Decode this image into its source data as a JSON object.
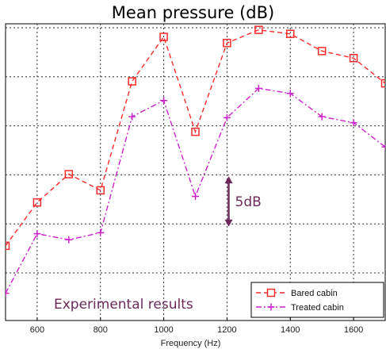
{
  "chart_data": {
    "type": "line",
    "title": "Mean pressure (dB)",
    "xlabel": "Frequency (Hz)",
    "ylabel": "",
    "xlim": [
      500,
      1700
    ],
    "x_ticks": [
      600,
      800,
      1000,
      1200,
      1400,
      1600
    ],
    "grid": true,
    "legend_position": "bottom-right",
    "series": [
      {
        "name": "Bared cabin",
        "color": "#ff2a2a",
        "marker": "square",
        "linestyle": "dashed",
        "x": [
          500,
          600,
          700,
          800,
          900,
          1000,
          1100,
          1200,
          1300,
          1400,
          1500,
          1600,
          1700
        ],
        "y": [
          -5.8,
          -1.5,
          1.3,
          -0.3,
          10.5,
          14.9,
          5.5,
          14.3,
          15.6,
          15.2,
          13.5,
          12.8,
          10.3
        ]
      },
      {
        "name": "Treated cabin",
        "color": "#cc22cc",
        "marker": "plus",
        "linestyle": "dashdot",
        "x": [
          500,
          600,
          700,
          800,
          900,
          1000,
          1100,
          1200,
          1300,
          1400,
          1500,
          1600,
          1700
        ],
        "y": [
          -10.5,
          -4.6,
          -5.2,
          -4.5,
          7.0,
          8.6,
          -0.9,
          6.9,
          9.8,
          9.3,
          7.0,
          6.4,
          4.0
        ]
      }
    ],
    "annotations": {
      "scale_bar_label": "5dB",
      "scale_bar_db": 5,
      "scale_bar_x": 1100,
      "scale_bar_y_bottom": -3.9,
      "caption": "Experimental results"
    }
  }
}
